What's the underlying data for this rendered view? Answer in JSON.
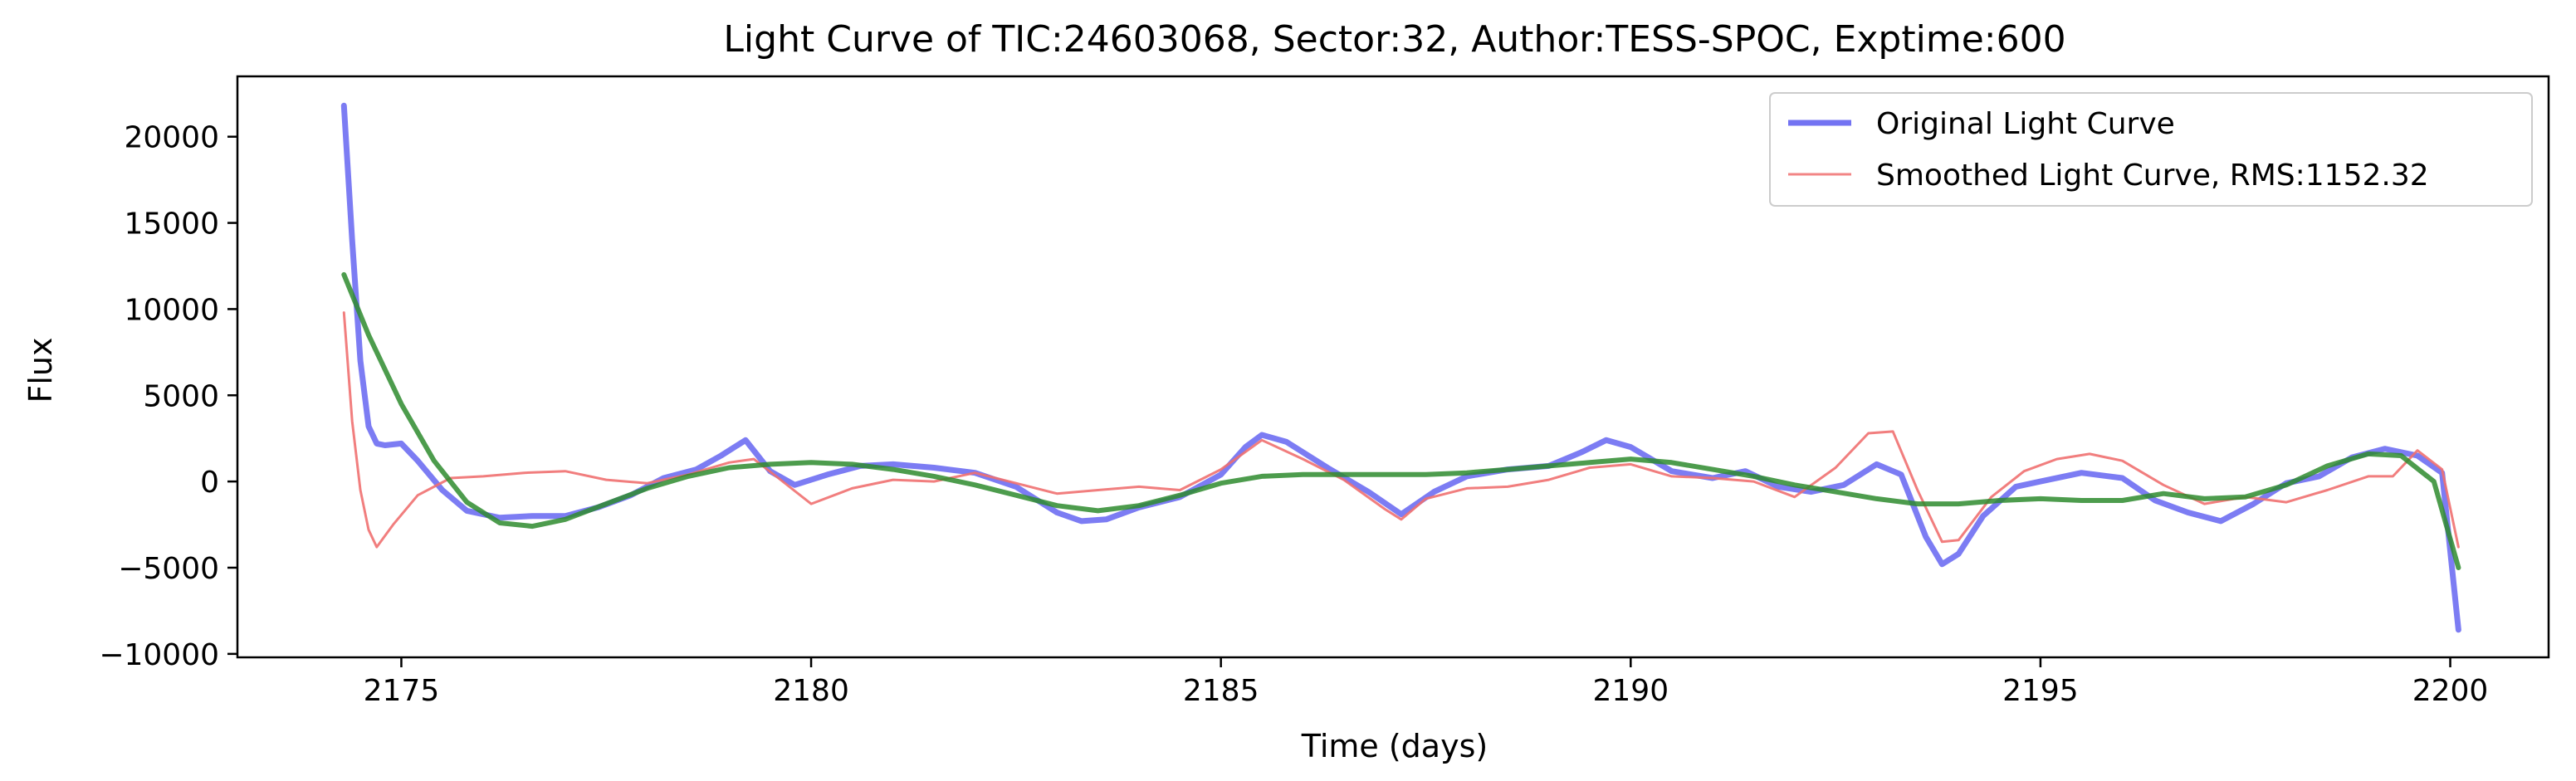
{
  "chart_data": {
    "type": "line",
    "title": "Light Curve of TIC:24603068, Sector:32, Author:TESS-SPOC, Exptime:600",
    "xlabel": "Time (days)",
    "ylabel": "Flux",
    "xlim": [
      2173.0,
      2201.2
    ],
    "ylim": [
      -10200,
      23500
    ],
    "xticks": [
      2175,
      2180,
      2185,
      2190,
      2195,
      2200
    ],
    "yticks": [
      -10000,
      -5000,
      0,
      5000,
      10000,
      15000,
      20000
    ],
    "grid": false,
    "legend": {
      "placement": "top-right"
    },
    "series": [
      {
        "name": "Original Light Curve",
        "color": "#5b5bf0",
        "x": [
          2174.3,
          2174.4,
          2174.5,
          2174.6,
          2174.7,
          2174.8,
          2175.0,
          2175.2,
          2175.5,
          2175.8,
          2176.2,
          2176.6,
          2177.0,
          2177.4,
          2177.8,
          2178.2,
          2178.6,
          2178.9,
          2179.2,
          2179.5,
          2179.8,
          2180.2,
          2180.6,
          2181.0,
          2181.5,
          2182.0,
          2182.5,
          2183.0,
          2183.3,
          2183.6,
          2184.0,
          2184.5,
          2185.0,
          2185.3,
          2185.5,
          2185.8,
          2186.3,
          2186.8,
          2187.2,
          2187.6,
          2188.0,
          2188.5,
          2189.0,
          2189.4,
          2189.7,
          2190.0,
          2190.5,
          2191.0,
          2191.4,
          2191.8,
          2192.2,
          2192.6,
          2193.0,
          2193.3,
          2193.6,
          2193.8,
          2194.0,
          2194.3,
          2194.7,
          2195.0,
          2195.5,
          2196.0,
          2196.4,
          2196.8,
          2197.2,
          2197.6,
          2198.0,
          2198.4,
          2198.8,
          2199.2,
          2199.6,
          2199.9,
          2200.1
        ],
        "y": [
          21800,
          14000,
          7000,
          3200,
          2200,
          2100,
          2200,
          1200,
          -500,
          -1700,
          -2100,
          -2000,
          -2000,
          -1500,
          -800,
          200,
          700,
          1500,
          2400,
          600,
          -200,
          400,
          900,
          1000,
          800,
          500,
          -300,
          -1800,
          -2300,
          -2200,
          -1500,
          -900,
          400,
          2000,
          2700,
          2300,
          800,
          -600,
          -1900,
          -600,
          300,
          700,
          900,
          1700,
          2400,
          2000,
          600,
          200,
          600,
          -300,
          -600,
          -200,
          1000,
          400,
          -3200,
          -4800,
          -4200,
          -2000,
          -300,
          0,
          500,
          200,
          -1100,
          -1800,
          -2300,
          -1300,
          -100,
          300,
          1400,
          1900,
          1500,
          500,
          -8600
        ]
      },
      {
        "name": "Smoothed Light Curve, RMS:1152.32",
        "color": "#f07070",
        "x": [
          2174.3,
          2174.4,
          2174.5,
          2174.6,
          2174.7,
          2174.9,
          2175.2,
          2175.6,
          2176.0,
          2176.5,
          2177.0,
          2177.5,
          2178.0,
          2178.5,
          2179.0,
          2179.3,
          2179.6,
          2180.0,
          2180.5,
          2181.0,
          2181.5,
          2182.0,
          2182.5,
          2183.0,
          2183.5,
          2184.0,
          2184.5,
          2185.0,
          2185.5,
          2186.0,
          2186.5,
          2187.0,
          2187.2,
          2187.5,
          2188.0,
          2188.5,
          2189.0,
          2189.5,
          2190.0,
          2190.5,
          2191.0,
          2191.5,
          2192.0,
          2192.5,
          2192.9,
          2193.2,
          2193.5,
          2193.8,
          2194.0,
          2194.4,
          2194.8,
          2195.2,
          2195.6,
          2196.0,
          2196.5,
          2197.0,
          2197.5,
          2198.0,
          2198.5,
          2199.0,
          2199.3,
          2199.6,
          2199.9,
          2200.1
        ],
        "y": [
          9800,
          3500,
          -500,
          -2800,
          -3800,
          -2500,
          -800,
          200,
          300,
          500,
          600,
          100,
          -100,
          400,
          1100,
          1300,
          200,
          -1300,
          -400,
          100,
          0,
          500,
          -100,
          -700,
          -500,
          -300,
          -500,
          700,
          2400,
          1300,
          100,
          -1600,
          -2200,
          -1000,
          -400,
          -300,
          100,
          800,
          1000,
          300,
          200,
          0,
          -900,
          800,
          2800,
          2900,
          -500,
          -3500,
          -3400,
          -900,
          600,
          1300,
          1600,
          1200,
          -200,
          -1300,
          -900,
          -1200,
          -500,
          300,
          300,
          1800,
          700,
          -3800
        ]
      },
      {
        "name": "",
        "color": "#2e8b2e",
        "x": [
          2174.3,
          2174.6,
          2175.0,
          2175.4,
          2175.8,
          2176.2,
          2176.6,
          2177.0,
          2177.5,
          2178.0,
          2178.5,
          2179.0,
          2179.5,
          2180.0,
          2180.5,
          2181.0,
          2181.5,
          2182.0,
          2182.5,
          2183.0,
          2183.5,
          2184.0,
          2184.5,
          2185.0,
          2185.5,
          2186.0,
          2186.5,
          2187.0,
          2187.5,
          2188.0,
          2188.5,
          2189.0,
          2189.5,
          2190.0,
          2190.5,
          2191.0,
          2191.5,
          2192.0,
          2192.5,
          2193.0,
          2193.5,
          2194.0,
          2194.5,
          2195.0,
          2195.5,
          2196.0,
          2196.5,
          2197.0,
          2197.5,
          2198.0,
          2198.5,
          2199.0,
          2199.4,
          2199.8,
          2200.1
        ],
        "y": [
          12000,
          8500,
          4500,
          1200,
          -1200,
          -2400,
          -2600,
          -2200,
          -1300,
          -400,
          300,
          800,
          1000,
          1100,
          1000,
          700,
          300,
          -200,
          -800,
          -1400,
          -1700,
          -1400,
          -800,
          -100,
          300,
          400,
          400,
          400,
          400,
          500,
          700,
          900,
          1100,
          1300,
          1100,
          700,
          300,
          -200,
          -600,
          -1000,
          -1300,
          -1300,
          -1100,
          -1000,
          -1100,
          -1100,
          -700,
          -1000,
          -900,
          -200,
          900,
          1600,
          1500,
          0,
          -5000
        ]
      }
    ]
  }
}
